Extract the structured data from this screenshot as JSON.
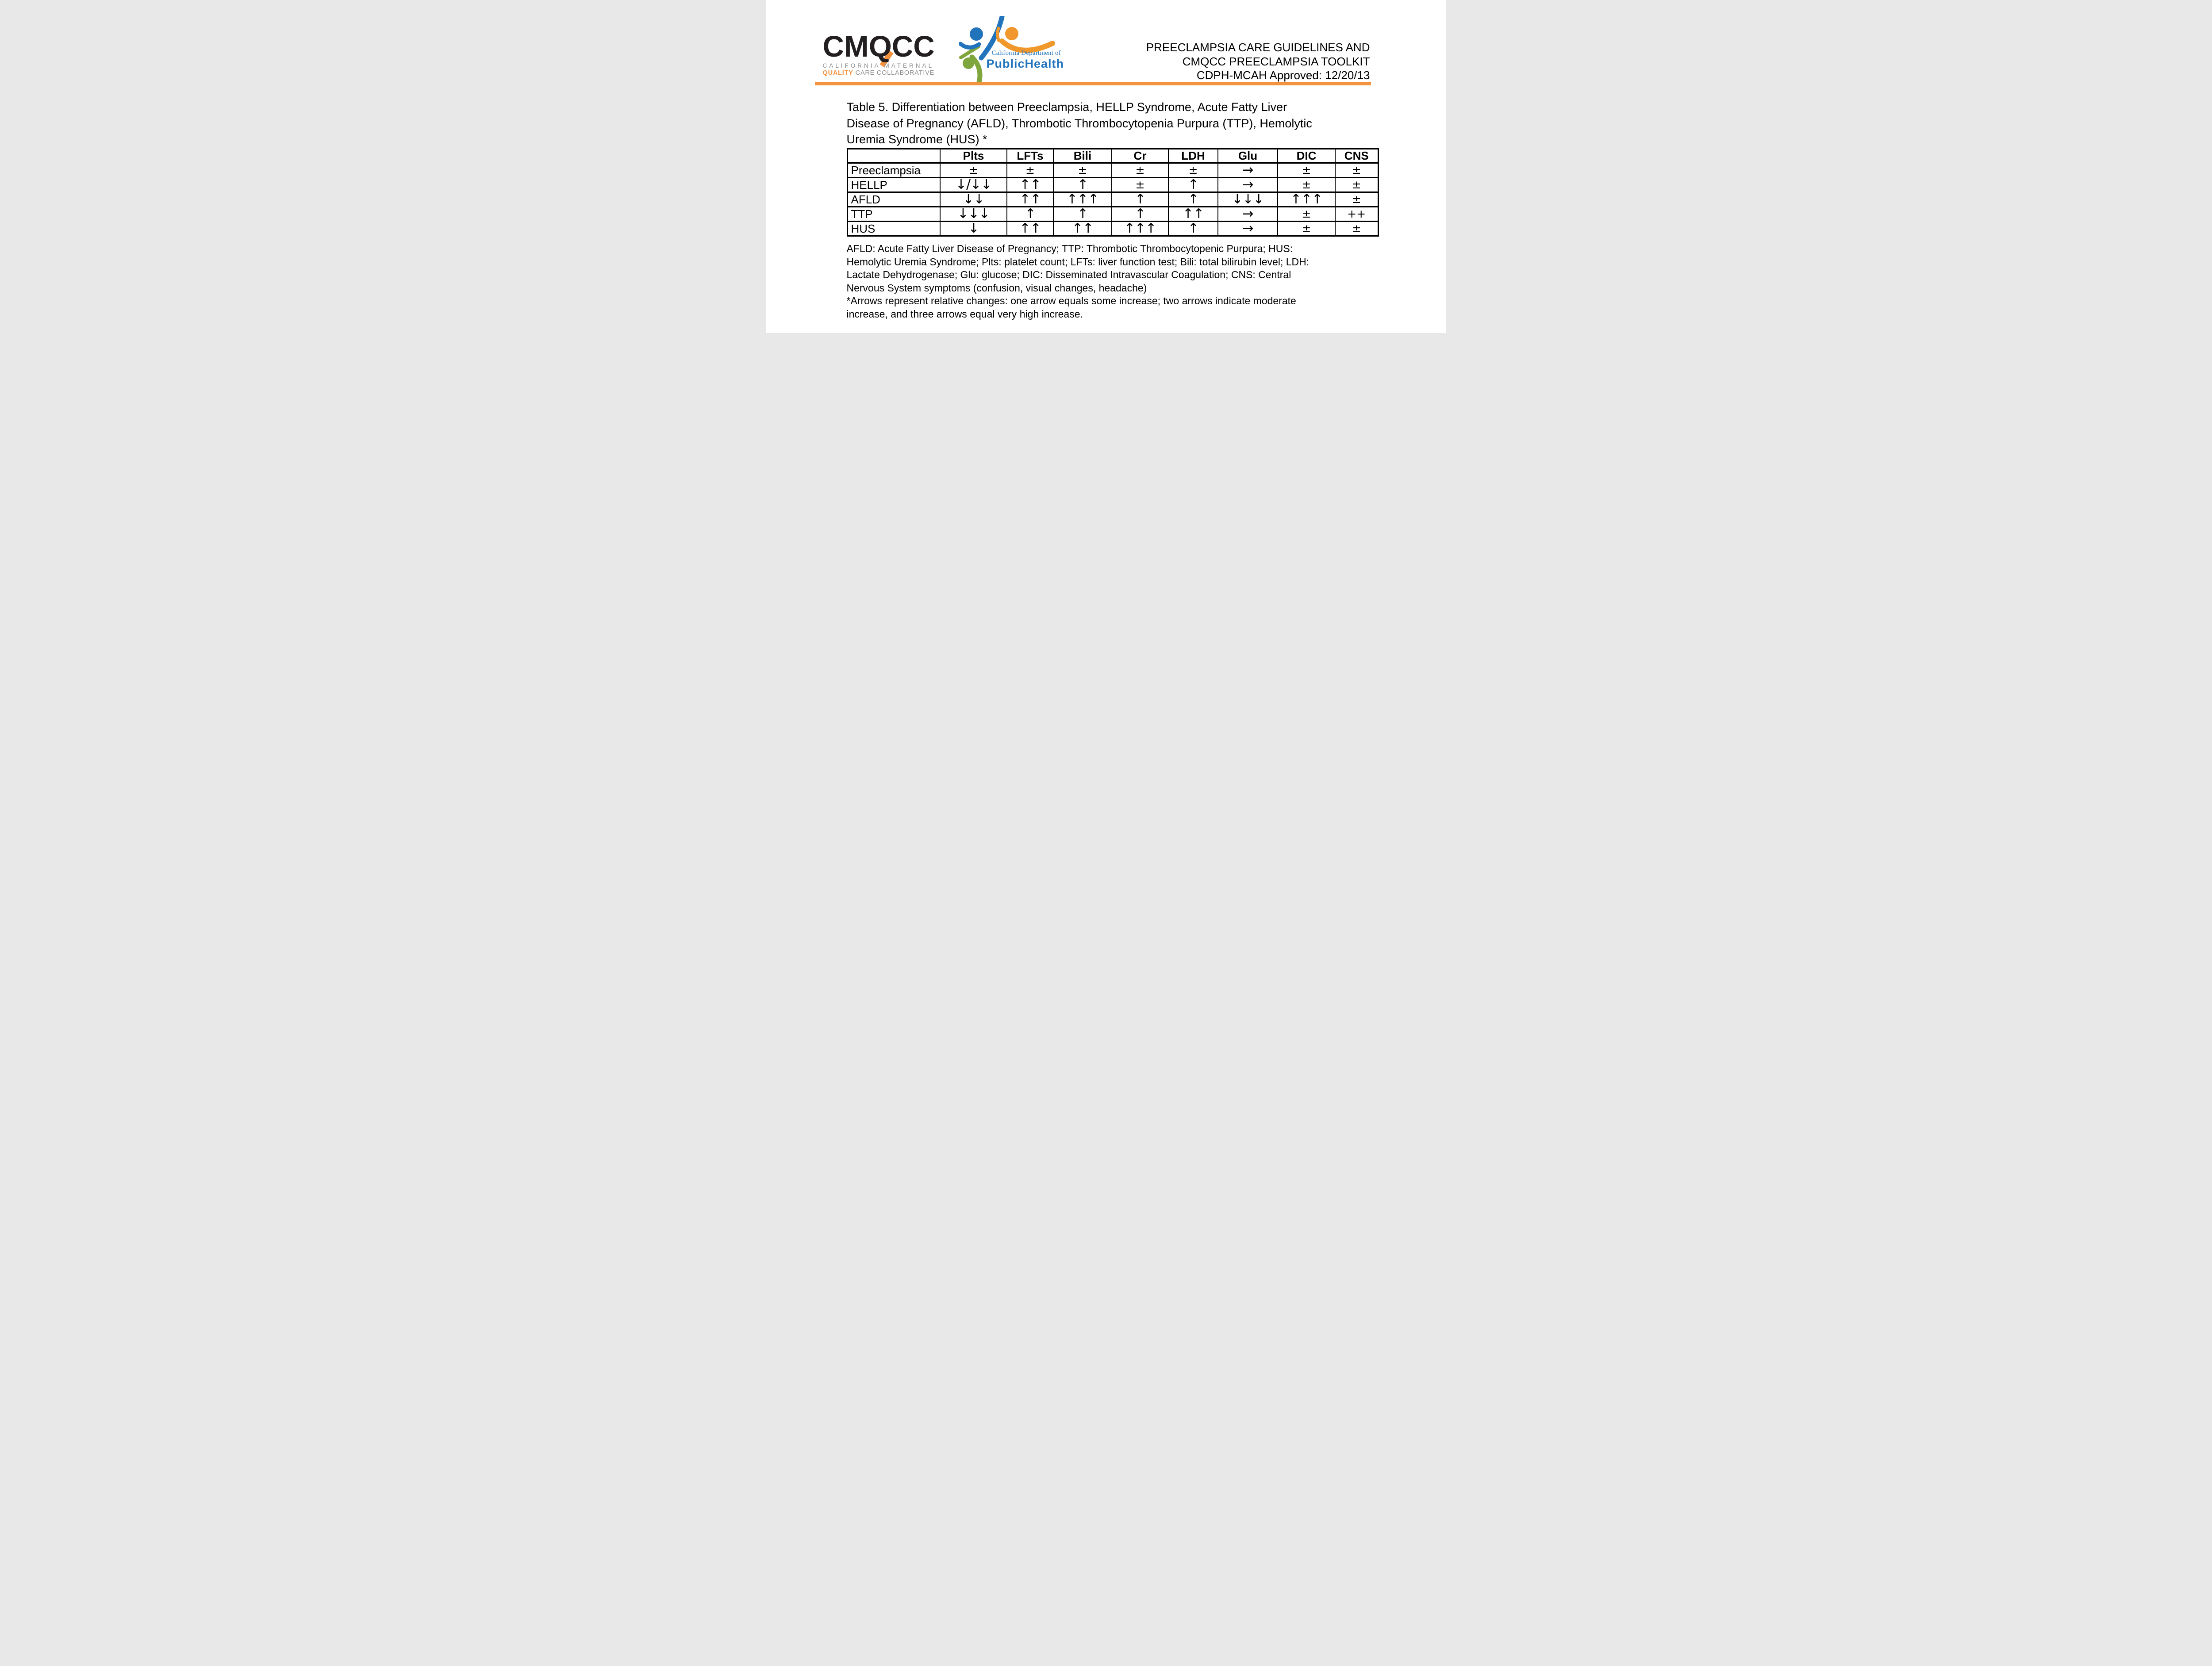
{
  "page": {
    "header": {
      "cmqcc_logo": {
        "wordmark": "CMQCC",
        "tagline_top": "CALIFORNIA MATERNAL",
        "tagline_bottom_highlight": "QUALITY",
        "tagline_bottom_rest": " CARE COLLABORATIVE"
      },
      "cdph_logo": {
        "dept_line": "California Department of",
        "name_line": "PublicHealth"
      },
      "doc_title_lines": [
        "PREECLAMPSIA CARE GUIDELINES AND",
        "CMQCC PREECLAMPSIA TOOLKIT",
        "CDPH-MCAH Approved: 12/20/13"
      ]
    },
    "caption_lines": [
      "Table 5. Differentiation between Preeclampsia, HELLP Syndrome, Acute Fatty Liver",
      "Disease of Pregnancy (AFLD), Thrombotic Thrombocytopenia Purpura (TTP), Hemolytic",
      "Uremia Syndrome (HUS) *"
    ],
    "table": {
      "columns": [
        "",
        "Plts",
        "LFTs",
        "Bili",
        "Cr",
        "LDH",
        "Glu",
        "DIC",
        "CNS"
      ],
      "rows": [
        {
          "label": "Preeclampsia",
          "values": [
            "±",
            "±",
            "±",
            "±",
            "±",
            "→",
            "±",
            "±"
          ]
        },
        {
          "label": "HELLP",
          "values": [
            "↓/↓↓",
            "↑↑",
            "↑",
            "±",
            "↑",
            "→",
            "±",
            "±"
          ]
        },
        {
          "label": "AFLD",
          "values": [
            "↓↓",
            "↑↑",
            "↑↑↑",
            "↑",
            "↑",
            "↓↓↓",
            "↑↑↑",
            "±"
          ]
        },
        {
          "label": "TTP",
          "values": [
            "↓↓↓",
            "↑",
            "↑",
            "↑",
            "↑↑",
            "→",
            "±",
            "++"
          ]
        },
        {
          "label": "HUS",
          "values": [
            "↓",
            "↑↑",
            "↑↑",
            "↑↑↑",
            "↑",
            "→",
            "±",
            "±"
          ]
        }
      ]
    },
    "footnote_lines": [
      "AFLD: Acute Fatty Liver Disease of Pregnancy; TTP: Thrombotic Thrombocytopenic Purpura; HUS:",
      "Hemolytic Uremia Syndrome; Plts: platelet count; LFTs: liver function test; Bili: total bilirubin level; LDH:",
      "Lactate Dehydrogenase; Glu: glucose; DIC: Disseminated Intravascular Coagulation; CNS: Central",
      "Nervous System symptoms (confusion, visual changes, headache)",
      "*Arrows represent relative changes: one arrow equals some increase; two arrows indicate moderate",
      "increase, and three arrows equal very high increase."
    ]
  },
  "colors": {
    "accent-orange": "#F5923E",
    "logo-black": "#231F20",
    "logo-gray": "#8D8D90",
    "cdph-blue": "#2173BC",
    "cdph-orange": "#F0982B",
    "cdph-green": "#7FA63C",
    "text-black": "#000000"
  }
}
